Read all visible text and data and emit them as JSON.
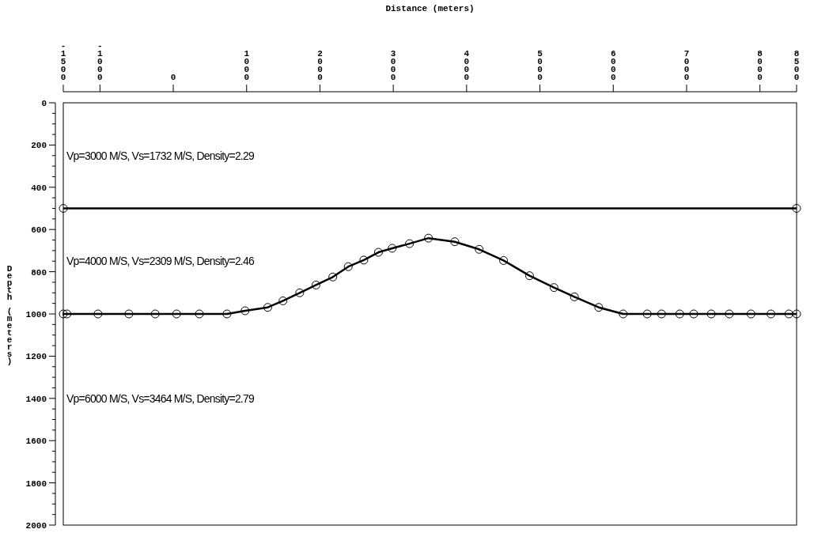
{
  "chart_data": {
    "type": "line",
    "xlabel": "Distance (meters)",
    "ylabel": "Depth (meters)",
    "xlim": [
      -1500,
      8500
    ],
    "ylim": [
      2000,
      0
    ],
    "xticks": [
      -1500,
      -1000,
      0,
      1000,
      2000,
      3000,
      4000,
      5000,
      6000,
      7000,
      8000,
      8500
    ],
    "yticks": [
      0,
      {
        "value": 50,
        "label": null
      },
      {
        "value": 100,
        "label": null
      },
      {
        "value": 150,
        "label": null
      },
      200,
      {
        "value": 250,
        "label": null
      },
      {
        "value": 300,
        "label": null
      },
      {
        "value": 350,
        "label": null
      },
      400,
      {
        "value": 450,
        "label": null
      },
      {
        "value": 500,
        "label": null
      },
      {
        "value": 550,
        "label": null
      },
      600,
      {
        "value": 650,
        "label": null
      },
      {
        "value": 700,
        "label": null
      },
      {
        "value": 750,
        "label": null
      },
      800,
      {
        "value": 850,
        "label": null
      },
      {
        "value": 900,
        "label": null
      },
      {
        "value": 950,
        "label": null
      },
      1000,
      {
        "value": 1050,
        "label": null
      },
      {
        "value": 1100,
        "label": null
      },
      {
        "value": 1150,
        "label": null
      },
      1200,
      {
        "value": 1250,
        "label": null
      },
      {
        "value": 1300,
        "label": null
      },
      {
        "value": 1350,
        "label": null
      },
      1400,
      {
        "value": 1450,
        "label": null
      },
      {
        "value": 1500,
        "label": null
      },
      {
        "value": 1550,
        "label": null
      },
      1600,
      {
        "value": 1650,
        "label": null
      },
      {
        "value": 1700,
        "label": null
      },
      {
        "value": 1750,
        "label": null
      },
      1800,
      {
        "value": 1850,
        "label": null
      },
      {
        "value": 1900,
        "label": null
      },
      {
        "value": 1950,
        "label": null
      },
      2000
    ],
    "marker": "circle",
    "grid": false,
    "series": [
      {
        "color": "#000000",
        "x": [
          -1500,
          8500
        ],
        "values": [
          500,
          500
        ]
      },
      {
        "color": "#000000",
        "x": [
          -1500,
          -1450,
          -1027,
          -605,
          -246,
          45,
          356,
          732,
          979,
          1288,
          1496,
          1724,
          1946,
          2175,
          2386,
          2598,
          2798,
          2985,
          3221,
          3480,
          3839,
          4171,
          4504,
          4858,
          5192,
          5470,
          5802,
          6135,
          6463,
          6659,
          6906,
          7097,
          7336,
          7582,
          7878,
          8150,
          8395,
          8500
        ],
        "values": [
          1000,
          1000,
          1000,
          1000,
          1000,
          1000,
          1000,
          1000,
          985,
          969,
          938,
          900,
          863,
          825,
          776,
          745,
          708,
          689,
          667,
          641,
          658,
          694,
          747,
          819,
          875,
          919,
          969,
          1000,
          1000,
          1000,
          1000,
          1000,
          1000,
          1000,
          1000,
          1000,
          1000,
          1000
        ]
      }
    ],
    "annotations": [
      "Vp=3000 M/S, Vs=1732 M/S, Density=2.29",
      "Vp=4000 M/S, Vs=2309 M/S, Density=2.46",
      "Vp=6000 M/S, Vs=3464 M/S, Density=2.79"
    ]
  }
}
